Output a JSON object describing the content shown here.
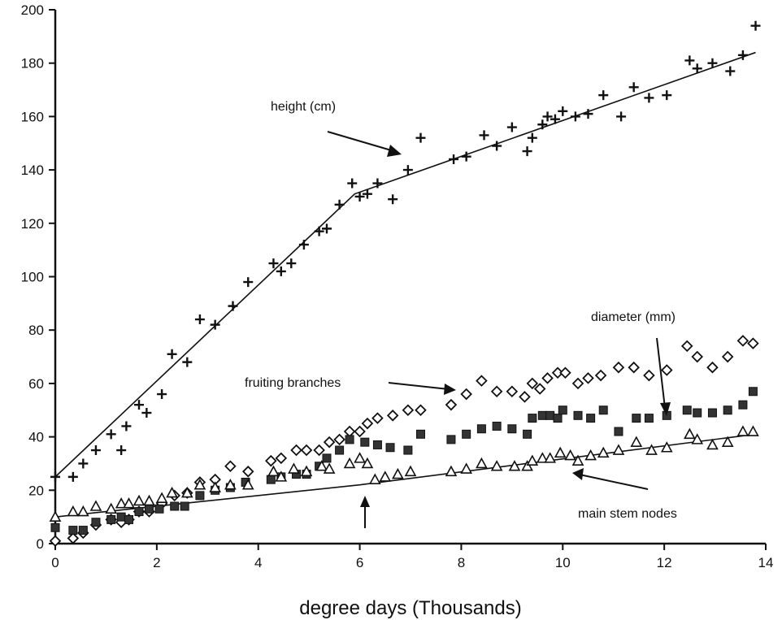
{
  "chart_data": {
    "type": "scatter",
    "title": "",
    "xlabel": "degree days (Thousands)",
    "ylabel": "",
    "xlim": [
      0,
      14
    ],
    "ylim": [
      0,
      200
    ],
    "xticks": [
      0,
      2,
      4,
      6,
      8,
      10,
      12,
      14
    ],
    "yticks": [
      0,
      20,
      40,
      60,
      80,
      100,
      120,
      140,
      160,
      180,
      200
    ],
    "grid": false,
    "legend": "none (series identified by text annotations with arrows)",
    "annotations": [
      "height (cm)",
      "diameter (mm)",
      "fruiting branches",
      "main stem nodes"
    ],
    "series": [
      {
        "name": "height (cm)",
        "marker": "plus",
        "points": [
          [
            0,
            25
          ],
          [
            0.35,
            25
          ],
          [
            0.55,
            30
          ],
          [
            0.8,
            35
          ],
          [
            1.1,
            41
          ],
          [
            1.3,
            35
          ],
          [
            1.4,
            44
          ],
          [
            1.65,
            52
          ],
          [
            1.8,
            49
          ],
          [
            2.1,
            56
          ],
          [
            2.3,
            71
          ],
          [
            2.6,
            68
          ],
          [
            2.85,
            84
          ],
          [
            3.15,
            82
          ],
          [
            3.5,
            89
          ],
          [
            3.8,
            98
          ],
          [
            4.3,
            105
          ],
          [
            4.45,
            102
          ],
          [
            4.65,
            105
          ],
          [
            4.9,
            112
          ],
          [
            5.2,
            117
          ],
          [
            5.35,
            118
          ],
          [
            5.6,
            127
          ],
          [
            5.85,
            135
          ],
          [
            6.0,
            130
          ],
          [
            6.15,
            131
          ],
          [
            6.35,
            135
          ],
          [
            6.65,
            129
          ],
          [
            6.95,
            140
          ],
          [
            7.2,
            152
          ],
          [
            7.85,
            144
          ],
          [
            8.1,
            145
          ],
          [
            8.45,
            153
          ],
          [
            8.7,
            149
          ],
          [
            9.0,
            156
          ],
          [
            9.3,
            147
          ],
          [
            9.4,
            152
          ],
          [
            9.6,
            157
          ],
          [
            9.7,
            160
          ],
          [
            9.85,
            159
          ],
          [
            10.0,
            162
          ],
          [
            10.25,
            160
          ],
          [
            10.5,
            161
          ],
          [
            10.8,
            168
          ],
          [
            11.15,
            160
          ],
          [
            11.4,
            171
          ],
          [
            11.7,
            167
          ],
          [
            12.05,
            168
          ],
          [
            12.5,
            181
          ],
          [
            12.65,
            178
          ],
          [
            12.95,
            180
          ],
          [
            13.3,
            177
          ],
          [
            13.55,
            183
          ],
          [
            13.8,
            194
          ]
        ],
        "fit": [
          [
            0,
            25
          ],
          [
            5.9,
            131
          ],
          [
            13.8,
            184
          ]
        ]
      },
      {
        "name": "fruiting branches",
        "marker": "diamond-open",
        "points": [
          [
            0,
            1
          ],
          [
            0.35,
            2
          ],
          [
            0.55,
            4
          ],
          [
            0.8,
            7
          ],
          [
            1.1,
            9
          ],
          [
            1.3,
            8
          ],
          [
            1.45,
            9
          ],
          [
            1.65,
            12
          ],
          [
            1.85,
            12
          ],
          [
            2.1,
            15
          ],
          [
            2.35,
            18
          ],
          [
            2.6,
            19
          ],
          [
            2.85,
            23
          ],
          [
            3.15,
            24
          ],
          [
            3.45,
            29
          ],
          [
            3.8,
            27
          ],
          [
            4.25,
            31
          ],
          [
            4.45,
            32
          ],
          [
            4.75,
            35
          ],
          [
            4.95,
            35
          ],
          [
            5.2,
            35
          ],
          [
            5.4,
            38
          ],
          [
            5.6,
            39
          ],
          [
            5.8,
            42
          ],
          [
            6.0,
            42
          ],
          [
            6.15,
            45
          ],
          [
            6.35,
            47
          ],
          [
            6.65,
            48
          ],
          [
            6.95,
            50
          ],
          [
            7.2,
            50
          ],
          [
            7.8,
            52
          ],
          [
            8.1,
            56
          ],
          [
            8.4,
            61
          ],
          [
            8.7,
            57
          ],
          [
            9.0,
            57
          ],
          [
            9.25,
            55
          ],
          [
            9.4,
            60
          ],
          [
            9.55,
            58
          ],
          [
            9.7,
            62
          ],
          [
            9.9,
            64
          ],
          [
            10.05,
            64
          ],
          [
            10.3,
            60
          ],
          [
            10.5,
            62
          ],
          [
            10.75,
            63
          ],
          [
            11.1,
            66
          ],
          [
            11.4,
            66
          ],
          [
            11.7,
            63
          ],
          [
            12.05,
            65
          ],
          [
            12.45,
            74
          ],
          [
            12.65,
            70
          ],
          [
            12.95,
            66
          ],
          [
            13.25,
            70
          ],
          [
            13.55,
            76
          ],
          [
            13.75,
            75
          ]
        ]
      },
      {
        "name": "diameter (mm)",
        "marker": "square-filled",
        "points": [
          [
            0,
            6
          ],
          [
            0.35,
            5
          ],
          [
            0.55,
            5
          ],
          [
            0.8,
            8
          ],
          [
            1.1,
            9
          ],
          [
            1.3,
            10
          ],
          [
            1.45,
            9
          ],
          [
            1.65,
            12
          ],
          [
            1.85,
            13
          ],
          [
            2.05,
            13
          ],
          [
            2.35,
            14
          ],
          [
            2.55,
            14
          ],
          [
            2.85,
            18
          ],
          [
            3.15,
            20
          ],
          [
            3.45,
            21
          ],
          [
            3.75,
            23
          ],
          [
            4.25,
            24
          ],
          [
            4.45,
            25
          ],
          [
            4.75,
            26
          ],
          [
            4.95,
            26
          ],
          [
            5.2,
            29
          ],
          [
            5.35,
            32
          ],
          [
            5.6,
            35
          ],
          [
            5.8,
            39
          ],
          [
            6.1,
            38
          ],
          [
            6.35,
            37
          ],
          [
            6.6,
            36
          ],
          [
            6.95,
            35
          ],
          [
            7.2,
            41
          ],
          [
            7.8,
            39
          ],
          [
            8.1,
            41
          ],
          [
            8.4,
            43
          ],
          [
            8.7,
            44
          ],
          [
            9.0,
            43
          ],
          [
            9.3,
            41
          ],
          [
            9.4,
            47
          ],
          [
            9.6,
            48
          ],
          [
            9.75,
            48
          ],
          [
            9.9,
            47
          ],
          [
            10.0,
            50
          ],
          [
            10.3,
            48
          ],
          [
            10.55,
            47
          ],
          [
            10.8,
            50
          ],
          [
            11.1,
            42
          ],
          [
            11.45,
            47
          ],
          [
            11.7,
            47
          ],
          [
            12.05,
            48
          ],
          [
            12.45,
            50
          ],
          [
            12.65,
            49
          ],
          [
            12.95,
            49
          ],
          [
            13.25,
            50
          ],
          [
            13.55,
            52
          ],
          [
            13.75,
            57
          ]
        ]
      },
      {
        "name": "main stem nodes",
        "marker": "triangle-open",
        "points": [
          [
            0,
            10
          ],
          [
            0.35,
            12
          ],
          [
            0.55,
            12
          ],
          [
            0.8,
            14
          ],
          [
            1.1,
            13
          ],
          [
            1.3,
            15
          ],
          [
            1.45,
            15
          ],
          [
            1.65,
            16
          ],
          [
            1.85,
            16
          ],
          [
            2.1,
            17
          ],
          [
            2.3,
            19
          ],
          [
            2.6,
            19
          ],
          [
            2.85,
            22
          ],
          [
            3.15,
            21
          ],
          [
            3.45,
            22
          ],
          [
            3.8,
            22
          ],
          [
            4.3,
            27
          ],
          [
            4.45,
            25
          ],
          [
            4.7,
            28
          ],
          [
            4.95,
            27
          ],
          [
            5.25,
            29
          ],
          [
            5.4,
            28
          ],
          [
            5.8,
            30
          ],
          [
            6.0,
            32
          ],
          [
            6.15,
            30
          ],
          [
            6.3,
            24
          ],
          [
            6.5,
            25
          ],
          [
            6.75,
            26
          ],
          [
            7.0,
            27
          ],
          [
            7.8,
            27
          ],
          [
            8.1,
            28
          ],
          [
            8.4,
            30
          ],
          [
            8.7,
            29
          ],
          [
            9.05,
            29
          ],
          [
            9.3,
            29
          ],
          [
            9.4,
            31
          ],
          [
            9.6,
            32
          ],
          [
            9.75,
            32
          ],
          [
            9.95,
            34
          ],
          [
            10.15,
            33
          ],
          [
            10.3,
            31
          ],
          [
            10.55,
            33
          ],
          [
            10.8,
            34
          ],
          [
            11.1,
            35
          ],
          [
            11.45,
            38
          ],
          [
            11.75,
            35
          ],
          [
            12.05,
            36
          ],
          [
            12.5,
            41
          ],
          [
            12.65,
            39
          ],
          [
            12.95,
            37
          ],
          [
            13.25,
            38
          ],
          [
            13.55,
            42
          ],
          [
            13.75,
            42
          ]
        ],
        "fit": [
          [
            0,
            10
          ],
          [
            6.0,
            22
          ],
          [
            13.8,
            41
          ]
        ]
      }
    ]
  }
}
